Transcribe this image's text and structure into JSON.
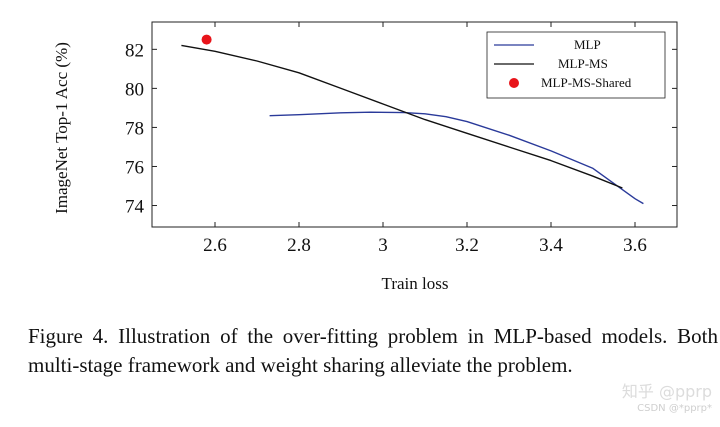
{
  "chart_data": {
    "type": "line",
    "xlabel": "Train loss",
    "ylabel": "ImageNet Top-1 Acc (%)",
    "xlim": [
      2.45,
      3.7
    ],
    "ylim": [
      72.9,
      83.4
    ],
    "xticks": [
      2.6,
      2.8,
      3,
      3.2,
      3.4,
      3.6
    ],
    "xtick_labels": [
      "2.6",
      "2.8",
      "3",
      "3.2",
      "3.4",
      "3.6"
    ],
    "yticks": [
      74,
      76,
      78,
      80,
      82
    ],
    "ytick_labels": [
      "74",
      "76",
      "78",
      "80",
      "82"
    ],
    "grid": false,
    "legend_position": "top-right",
    "series": [
      {
        "name": "MLP",
        "kind": "line",
        "color": "#2a3a9a",
        "x": [
          2.73,
          2.8,
          2.9,
          2.97,
          3.05,
          3.1,
          3.15,
          3.2,
          3.3,
          3.4,
          3.5,
          3.6,
          3.62
        ],
        "y": [
          78.6,
          78.65,
          78.75,
          78.78,
          78.76,
          78.7,
          78.55,
          78.3,
          77.6,
          76.8,
          75.9,
          74.35,
          74.1
        ]
      },
      {
        "name": "MLP-MS",
        "kind": "line",
        "color": "#111111",
        "x": [
          2.52,
          2.6,
          2.7,
          2.8,
          2.9,
          3.0,
          3.1,
          3.2,
          3.3,
          3.4,
          3.5,
          3.57
        ],
        "y": [
          82.2,
          81.9,
          81.4,
          80.8,
          80.0,
          79.2,
          78.4,
          77.7,
          77.0,
          76.3,
          75.5,
          74.9
        ]
      },
      {
        "name": "MLP-MS-Shared",
        "kind": "point",
        "color": "#e8141a",
        "x": [
          2.58
        ],
        "y": [
          82.5
        ]
      }
    ]
  },
  "caption": "Figure 4.  Illustration of the over-fitting problem in MLP-based models. Both multi-stage framework and weight sharing alleviate the problem.",
  "watermark": {
    "line1": "知乎 @pprp",
    "line2": "CSDN @*pprp*"
  }
}
